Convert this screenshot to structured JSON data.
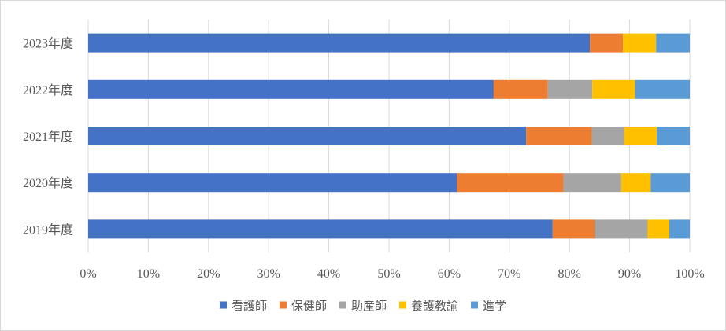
{
  "chart_data": {
    "type": "bar",
    "orientation": "horizontal",
    "stacked": "percent",
    "categories": [
      "2023年度",
      "2022年度",
      "2021年度",
      "2020年度",
      "2019年度"
    ],
    "series": [
      {
        "name": "看護師",
        "color": "#4472C4",
        "values": [
          83.4,
          67.4,
          72.8,
          61.3,
          77.2
        ]
      },
      {
        "name": "保健師",
        "color": "#ED7D31",
        "values": [
          5.5,
          9.0,
          10.9,
          17.7,
          7.0
        ]
      },
      {
        "name": "助産師",
        "color": "#A5A5A5",
        "values": [
          0.0,
          7.4,
          5.4,
          9.6,
          8.8
        ]
      },
      {
        "name": "養護教諭",
        "color": "#FFC000",
        "values": [
          5.5,
          7.1,
          5.4,
          4.9,
          3.6
        ]
      },
      {
        "name": "進学",
        "color": "#5B9BD5",
        "values": [
          5.6,
          9.1,
          5.5,
          6.5,
          3.4
        ]
      }
    ],
    "xlim": [
      0,
      100
    ],
    "xticks": [
      "0%",
      "10%",
      "20%",
      "30%",
      "40%",
      "50%",
      "60%",
      "70%",
      "80%",
      "90%",
      "100%"
    ],
    "grid": true,
    "legend_position": "bottom"
  }
}
